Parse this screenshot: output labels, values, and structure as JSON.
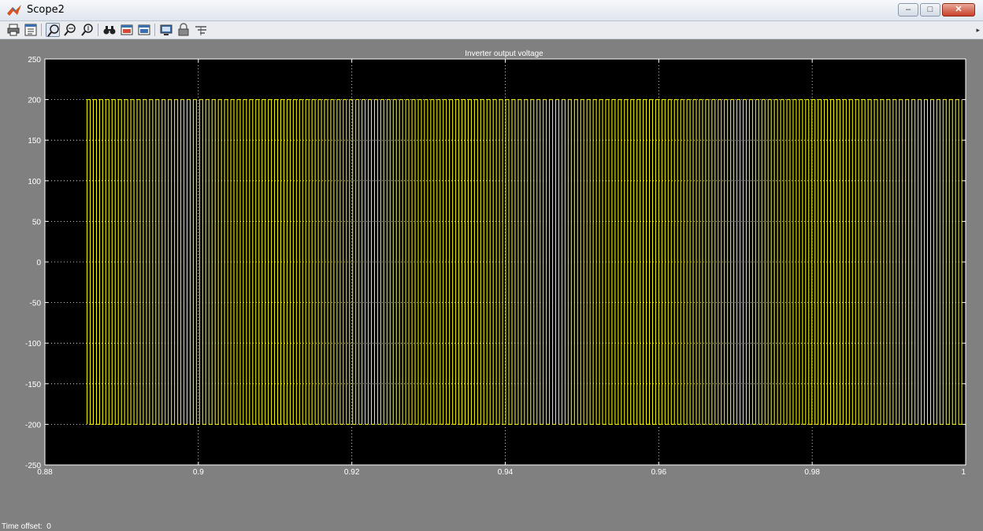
{
  "window": {
    "title": "Scope2",
    "controls": {
      "minimize": "–",
      "maximize": "□",
      "close": "✕"
    }
  },
  "toolbar": {
    "buttons": [
      {
        "name": "print-icon"
      },
      {
        "name": "parameters-icon"
      },
      {
        "name": "zoom-icon",
        "active": true
      },
      {
        "name": "zoom-x-icon"
      },
      {
        "name": "zoom-y-icon"
      },
      {
        "name": "autoscale-icon"
      },
      {
        "name": "save-axes-icon"
      },
      {
        "name": "restore-axes-icon"
      },
      {
        "name": "floating-scope-icon"
      },
      {
        "name": "lock-axes-icon"
      },
      {
        "name": "signal-selection-icon"
      }
    ]
  },
  "status": {
    "time_offset_label": "Time offset:",
    "time_offset_value": "0"
  },
  "colors": {
    "axes_bg": "#000000",
    "signal": "#ffff00",
    "figure_bg": "#808080",
    "text": "#ffffff"
  },
  "chart_data": {
    "type": "line",
    "title": "Inverter output voltage",
    "xlabel": "",
    "ylabel": "",
    "xlim": [
      0.88,
      1
    ],
    "ylim": [
      -250,
      250
    ],
    "xticks": [
      0.88,
      0.9,
      0.92,
      0.94,
      0.96,
      0.98,
      1
    ],
    "xtick_labels": [
      "0.88",
      "0.9",
      "0.92",
      "0.94",
      "0.96",
      "0.98",
      "1"
    ],
    "yticks": [
      250,
      200,
      150,
      100,
      50,
      0,
      -50,
      -100,
      -150,
      -200,
      -250
    ],
    "ytick_labels": [
      "250",
      "200",
      "150",
      "100",
      "50",
      "0",
      "-50",
      "-100",
      "-150",
      "-200",
      "-250"
    ],
    "grid": true,
    "series": [
      {
        "signal": "square",
        "start_x": 0.8855,
        "end_x": 0.9995,
        "high": 200,
        "low": -200,
        "cycles": 140
      }
    ]
  }
}
